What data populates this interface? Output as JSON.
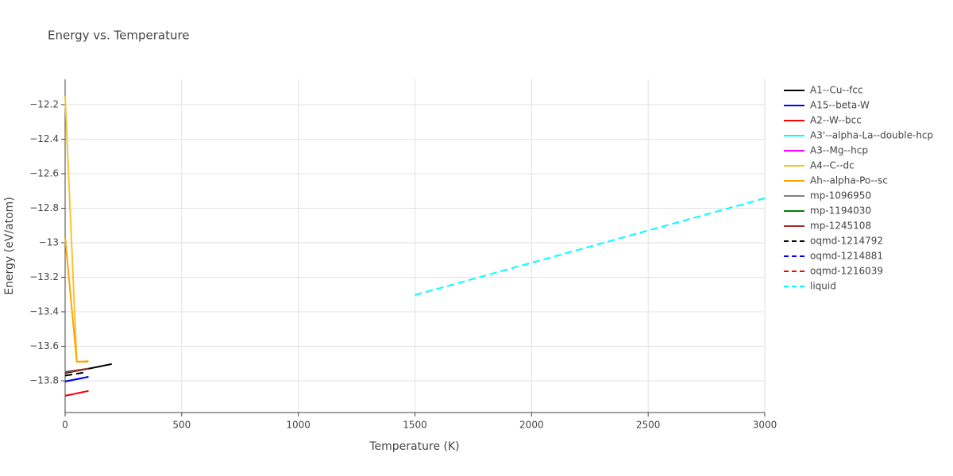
{
  "chart_data": {
    "type": "line",
    "title": "Energy vs. Temperature",
    "x_label": "Temperature (K)",
    "y_label": "Energy (eV/atom)",
    "xlim": [
      0,
      3000
    ],
    "ylim": [
      -13.984,
      -12.053
    ],
    "xticks": [
      0,
      500,
      1000,
      1500,
      2000,
      2500,
      3000
    ],
    "yticks": [
      {
        "value": -12.2,
        "label": "−12.2"
      },
      {
        "value": -12.4,
        "label": "−12.4"
      },
      {
        "value": -12.6,
        "label": "−12.6"
      },
      {
        "value": -12.8,
        "label": "−12.8"
      },
      {
        "value": -13,
        "label": "−13"
      },
      {
        "value": -13.2,
        "label": "−13.2"
      },
      {
        "value": -13.4,
        "label": "−13.4"
      },
      {
        "value": -13.6,
        "label": "−13.6"
      },
      {
        "value": -13.8,
        "label": "−13.8"
      }
    ],
    "grid": true,
    "legend": "right",
    "series": [
      {
        "name": "A1--Cu--fcc",
        "color": "#000000",
        "dash": false,
        "x": [
          0,
          100,
          200
        ],
        "values": [
          -13.755,
          -13.73,
          -13.703
        ]
      },
      {
        "name": "A15--beta-W",
        "color": "#0000ff",
        "dash": false,
        "x": [
          0,
          100
        ],
        "values": [
          -13.804,
          -13.777
        ]
      },
      {
        "name": "A2--W--bcc",
        "color": "#ff0000",
        "dash": false,
        "x": [
          0,
          100
        ],
        "values": [
          -13.887,
          -13.859
        ]
      },
      {
        "name": "A3'--alpha-La--double-hcp",
        "color": "#00ffff",
        "dash": false,
        "x": [
          0,
          100
        ],
        "values": [
          -13.748,
          -13.73
        ]
      },
      {
        "name": "A3--Mg--hcp",
        "color": "#ff00ff",
        "dash": false,
        "x": [
          0,
          100
        ],
        "values": [
          -13.75,
          -13.73
        ]
      },
      {
        "name": "A4--C--dc",
        "color": "#f4c431",
        "dash": false,
        "x": [
          0,
          50,
          100
        ],
        "values": [
          -12.15,
          -13.69,
          -13.685
        ]
      },
      {
        "name": "Ah--alpha-Po--sc",
        "color": "#ffa500",
        "dash": false,
        "x": [
          0,
          50,
          100
        ],
        "values": [
          -12.97,
          -13.69,
          -13.69
        ]
      },
      {
        "name": "mp-1096950",
        "color": "#808080",
        "dash": false,
        "x": [
          0,
          100
        ],
        "values": [
          -13.75,
          -13.73
        ]
      },
      {
        "name": "mp-1194030",
        "color": "#008000",
        "dash": false,
        "x": [
          0,
          100
        ],
        "values": [
          -13.75,
          -13.73
        ]
      },
      {
        "name": "mp-1245108",
        "color": "#a52a2a",
        "dash": false,
        "x": [
          0,
          100
        ],
        "values": [
          -13.75,
          -13.73
        ]
      },
      {
        "name": "oqmd-1214792",
        "color": "#000000",
        "dash": true,
        "x": [
          0,
          90
        ],
        "values": [
          -13.77,
          -13.75
        ]
      },
      {
        "name": "oqmd-1214881",
        "color": "#0000ff",
        "dash": true,
        "x": [
          0,
          100
        ],
        "values": [
          -13.804,
          -13.777
        ]
      },
      {
        "name": "oqmd-1216039",
        "color": "#ff0000",
        "dash": true,
        "x": [
          0,
          100
        ],
        "values": [
          -13.887,
          -13.859
        ]
      },
      {
        "name": "liquid",
        "color": "#00ffff",
        "dash": true,
        "x": [
          1500,
          3000
        ],
        "values": [
          -13.303,
          -12.742
        ]
      }
    ]
  }
}
